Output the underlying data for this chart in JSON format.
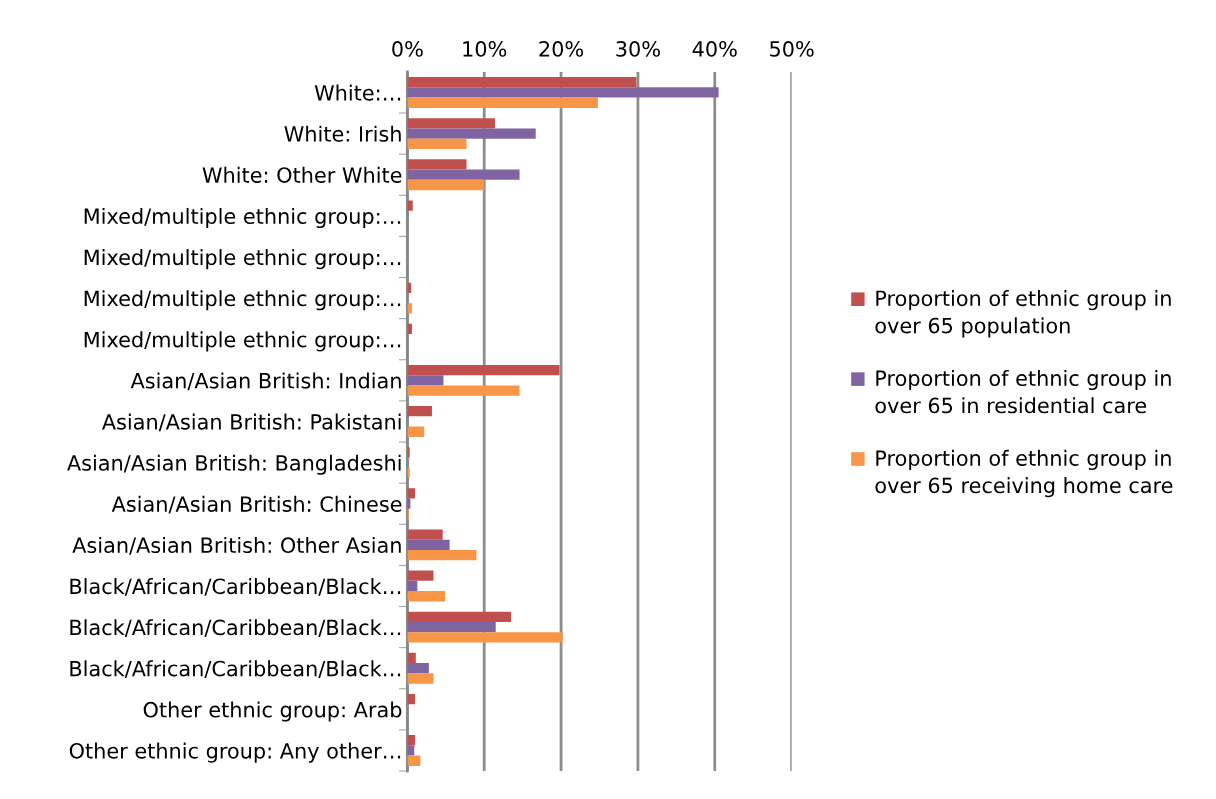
{
  "chart_data": {
    "type": "bar",
    "orientation": "horizontal",
    "categories": [
      "White:…",
      "White: Irish",
      "White: Other White",
      "Mixed/multiple ethnic group:…",
      "Mixed/multiple ethnic group:…",
      "Mixed/multiple ethnic group:…",
      "Mixed/multiple ethnic group:…",
      "Asian/Asian British: Indian",
      "Asian/Asian British: Pakistani",
      "Asian/Asian British: Bangladeshi",
      "Asian/Asian British: Chinese",
      "Asian/Asian British: Other Asian",
      "Black/African/Caribbean/Black…",
      "Black/African/Caribbean/Black…",
      "Black/African/Caribbean/Black…",
      "Other ethnic group: Arab",
      "Other ethnic group: Any other…"
    ],
    "series": [
      {
        "name": "Proportion of ethnic group in over 65 population",
        "color": "#c0504d",
        "values": [
          29.8,
          11.4,
          7.7,
          0.7,
          null,
          0.5,
          0.6,
          19.8,
          3.2,
          0.3,
          1.0,
          4.6,
          3.4,
          13.5,
          1.1,
          1.0,
          1.0
        ]
      },
      {
        "name": "Proportion of ethnic group in over 65 in residential care",
        "color": "#8064a2",
        "values": [
          40.5,
          16.7,
          14.6,
          null,
          null,
          0,
          null,
          4.7,
          null,
          0,
          0.4,
          5.5,
          1.3,
          11.5,
          2.8,
          0,
          0.9
        ]
      },
      {
        "name": "Proportion of ethnic group in over 65 receiving home care",
        "color": "#f79646",
        "values": [
          24.8,
          7.7,
          10.0,
          0,
          0,
          0.6,
          0,
          14.6,
          2.2,
          0.3,
          0.2,
          9.0,
          4.9,
          20.2,
          3.4,
          0,
          1.7
        ]
      }
    ],
    "xlim": [
      0,
      50
    ],
    "xticks": [
      {
        "value": 0,
        "label": "0%"
      },
      {
        "value": 10,
        "label": "10%"
      },
      {
        "value": 20,
        "label": "20%"
      },
      {
        "value": 30,
        "label": "30%"
      },
      {
        "value": 40,
        "label": "40%"
      },
      {
        "value": 50,
        "label": "50%"
      }
    ],
    "grid": "x",
    "legend": "right"
  }
}
